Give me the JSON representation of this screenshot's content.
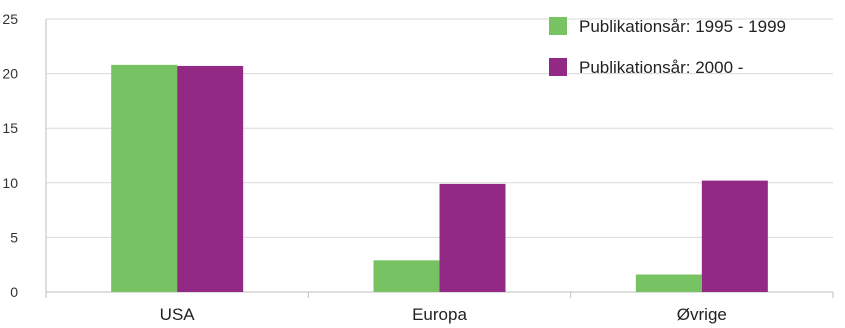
{
  "chart_data": {
    "type": "bar",
    "categories": [
      "USA",
      "Europa",
      "Øvrige"
    ],
    "series": [
      {
        "name": "Publikationsår: 1995 - 1999",
        "color": "#77c363",
        "values": [
          20.8,
          2.9,
          1.6
        ]
      },
      {
        "name": "Publikationsår: 2000 -",
        "color": "#922a85",
        "values": [
          20.7,
          9.9,
          10.2
        ]
      }
    ],
    "yticks": [
      0,
      5,
      10,
      15,
      20,
      25
    ],
    "ylim": [
      0,
      25
    ],
    "grid": true,
    "legend_position": "top-right",
    "title": "",
    "xlabel": "",
    "ylabel": ""
  }
}
